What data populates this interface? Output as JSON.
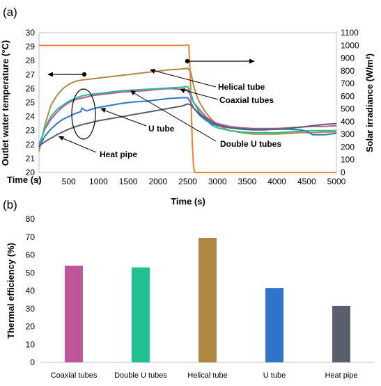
{
  "panel_labels": [
    "(a)",
    "(b)"
  ],
  "chart_data": [
    {
      "type": "line",
      "panel": "(a)",
      "xlabel": "Time (s)",
      "xlabel_corner": "Time (s)",
      "ylabel_left": "Outlet water temperature (°C)",
      "ylabel_right": "Solar irradiance (W/m²)",
      "xlim": [
        0,
        5000
      ],
      "ylim_left": [
        20,
        30
      ],
      "ylim_right": [
        0,
        1100
      ],
      "x_ticks": [
        0,
        500,
        1000,
        1500,
        2000,
        2500,
        3000,
        3500,
        4000,
        4500,
        5000
      ],
      "y_left_ticks": [
        20,
        21,
        22,
        23,
        24,
        25,
        26,
        27,
        28,
        29,
        30
      ],
      "y_right_ticks": [
        0,
        100,
        200,
        300,
        400,
        500,
        600,
        700,
        800,
        900,
        1000,
        1100
      ],
      "grid": false,
      "series": [
        {
          "name": "Solar irradiance",
          "axis": "right",
          "color": "#ED7D31",
          "x": [
            0,
            2400,
            2450,
            2500,
            2520,
            2540,
            2560,
            2580,
            2600,
            2620,
            2700,
            5000
          ],
          "y": [
            1000,
            1000,
            1000,
            1005,
            1000,
            800,
            500,
            200,
            40,
            0,
            0,
            0
          ]
        },
        {
          "name": "Helical tube",
          "axis": "left",
          "color": "#B08843",
          "x": [
            0,
            100,
            200,
            300,
            400,
            500,
            600,
            700,
            800,
            900,
            1000,
            1200,
            1400,
            1600,
            1800,
            2000,
            2200,
            2400,
            2500,
            2550,
            2600,
            2650,
            2700,
            2800,
            2900,
            3000,
            3200,
            3400,
            3600,
            3800,
            4000,
            4200,
            4400,
            4600,
            4800,
            5000
          ],
          "y": [
            21.5,
            23.4,
            24.8,
            25.5,
            26.0,
            26.3,
            26.5,
            26.6,
            26.65,
            26.7,
            26.75,
            26.85,
            26.95,
            27.05,
            27.15,
            27.25,
            27.35,
            27.4,
            27.45,
            27.2,
            26.2,
            25.5,
            25.0,
            24.3,
            23.8,
            23.4,
            23.0,
            22.85,
            22.75,
            22.75,
            22.75,
            22.8,
            22.85,
            22.85,
            22.9,
            22.9
          ]
        },
        {
          "name": "Coaxial tubes",
          "axis": "left",
          "color": "#C0559A",
          "x": [
            0,
            100,
            200,
            300,
            400,
            500,
            600,
            700,
            800,
            900,
            1000,
            1200,
            1400,
            1600,
            1800,
            2000,
            2200,
            2400,
            2500,
            2550,
            2600,
            2700,
            2800,
            2900,
            3000,
            3200,
            3400,
            3600,
            3800,
            4000,
            4200,
            4400,
            4600,
            4800,
            5000
          ],
          "y": [
            22.0,
            23.1,
            23.8,
            24.3,
            24.7,
            25.0,
            25.2,
            25.3,
            25.4,
            25.5,
            25.55,
            25.65,
            25.75,
            25.8,
            25.85,
            25.95,
            26.0,
            25.95,
            25.9,
            25.5,
            25.0,
            24.5,
            24.0,
            23.7,
            23.5,
            23.3,
            23.2,
            23.15,
            23.15,
            23.15,
            23.2,
            23.25,
            23.3,
            23.3,
            23.35
          ]
        },
        {
          "name": "Double U tubes",
          "axis": "left",
          "color": "#1FC192",
          "x": [
            0,
            100,
            200,
            300,
            400,
            500,
            600,
            700,
            800,
            900,
            1000,
            1200,
            1400,
            1600,
            1800,
            2000,
            2200,
            2400,
            2500,
            2550,
            2600,
            2700,
            2800,
            2900,
            3000,
            3200,
            3400,
            3600,
            3800,
            4000,
            4200,
            4400,
            4600,
            4800,
            5000
          ],
          "y": [
            21.8,
            23.2,
            24.0,
            24.5,
            24.8,
            25.1,
            25.3,
            25.45,
            25.55,
            25.6,
            25.65,
            25.75,
            25.85,
            25.9,
            25.95,
            26.0,
            26.05,
            26.1,
            26.15,
            25.7,
            25.0,
            24.3,
            23.8,
            23.4,
            23.2,
            23.0,
            22.9,
            22.85,
            22.85,
            22.85,
            22.9,
            22.95,
            23.0,
            23.0,
            23.0
          ]
        },
        {
          "name": "U tube",
          "axis": "left",
          "color": "#2F74C8",
          "x": [
            0,
            100,
            200,
            300,
            400,
            500,
            600,
            700,
            720,
            760,
            800,
            900,
            1000,
            1200,
            1400,
            1600,
            1800,
            2000,
            2200,
            2400,
            2500,
            2550,
            2600,
            2700,
            2800,
            2900,
            3000,
            3200,
            3400,
            3600,
            3800,
            4000,
            4200,
            4400,
            4500,
            4600,
            4700,
            4800,
            5000
          ],
          "y": [
            21.8,
            22.6,
            23.1,
            23.5,
            23.8,
            24.0,
            24.2,
            24.35,
            24.6,
            24.5,
            24.4,
            24.55,
            24.65,
            24.8,
            24.95,
            25.05,
            25.1,
            25.2,
            25.3,
            25.35,
            25.35,
            25.0,
            24.6,
            24.1,
            23.75,
            23.5,
            23.35,
            23.2,
            23.15,
            23.1,
            23.1,
            23.1,
            23.1,
            23.05,
            22.95,
            22.7,
            22.7,
            22.7,
            22.8
          ]
        },
        {
          "name": "Heat pipe",
          "axis": "left",
          "color": "#5B5E6B",
          "x": [
            0,
            100,
            200,
            300,
            400,
            500,
            600,
            700,
            800,
            900,
            1000,
            1200,
            1400,
            1600,
            1800,
            2000,
            2200,
            2400,
            2500,
            2550,
            2600,
            2700,
            2800,
            2900,
            3000,
            3200,
            3400,
            3600,
            3800,
            4000,
            4200,
            4400,
            4600,
            4800,
            5000
          ],
          "y": [
            21.9,
            22.2,
            22.45,
            22.7,
            22.9,
            23.1,
            23.25,
            23.4,
            23.5,
            23.6,
            23.7,
            23.85,
            24.0,
            24.15,
            24.3,
            24.45,
            24.6,
            24.75,
            24.9,
            24.85,
            24.6,
            24.2,
            23.9,
            23.6,
            23.4,
            23.2,
            23.1,
            23.05,
            23.05,
            23.1,
            23.15,
            23.25,
            23.35,
            23.45,
            23.5
          ]
        }
      ],
      "annotations": [
        "Helical tube",
        "Coaxial tubes",
        "U tube",
        "Double U tubes",
        "Heat pipe"
      ]
    },
    {
      "type": "bar",
      "panel": "(b)",
      "categories": [
        "Coaxial tubes",
        "Double U tubes",
        "Helical tube",
        "U tube",
        "Heat pipe"
      ],
      "values": [
        54,
        53,
        69.5,
        41.5,
        31.5
      ],
      "colors": [
        "#C0559A",
        "#1FC192",
        "#B08843",
        "#2F74C8",
        "#5B5E6B"
      ],
      "xlabel": "",
      "ylabel": "Thermal efficiency (%)",
      "ylim": [
        0,
        80
      ],
      "y_ticks": [
        0,
        10,
        20,
        30,
        40,
        50,
        60,
        70,
        80
      ],
      "grid": false
    }
  ]
}
